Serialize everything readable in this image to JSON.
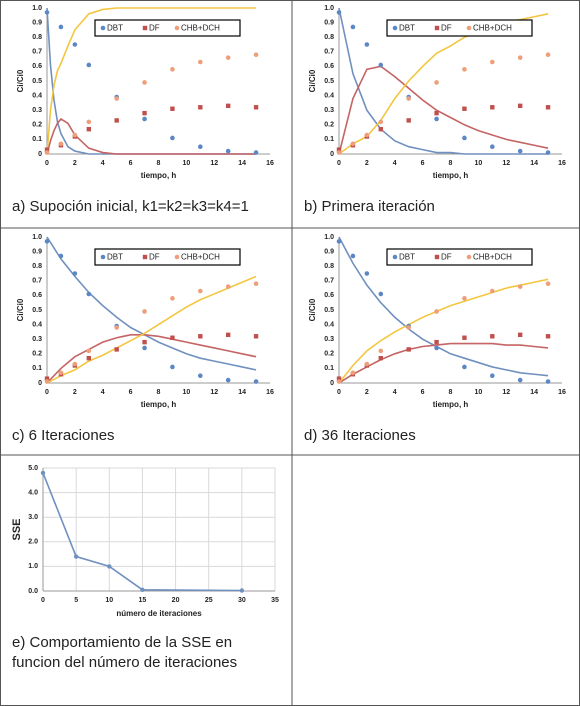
{
  "chart_data": [
    {
      "type": "scatter",
      "caption": "a)  Supoción inicial, k1=k2=k3=k4=1",
      "xlabel": "tiempo, h",
      "ylabel": "Ci/Ci0",
      "xlim": [
        0,
        16
      ],
      "xticks": [
        0,
        2,
        4,
        6,
        8,
        10,
        12,
        14,
        16
      ],
      "ylim": [
        0,
        1
      ],
      "yticks": [
        0,
        0.1,
        0.2,
        0.3,
        0.4,
        0.5,
        0.6,
        0.7,
        0.8,
        0.9,
        {
          "value": 1,
          "label": "1.0"
        }
      ],
      "legend": "top",
      "x": [
        0,
        1,
        2,
        3,
        5,
        7,
        9,
        11,
        13,
        15
      ],
      "series": [
        {
          "name": "DBT",
          "color": "#5b87c5",
          "marker": "circle",
          "values": [
            0.97,
            0.87,
            0.75,
            0.61,
            0.39,
            0.24,
            0.11,
            0.05,
            0.02,
            0.01
          ]
        },
        {
          "name": "DF",
          "color": "#c0504d",
          "marker": "square",
          "values": [
            0.03,
            0.06,
            0.12,
            0.17,
            0.23,
            0.28,
            0.31,
            0.32,
            0.33,
            0.32
          ]
        },
        {
          "name": "CHB+DCH",
          "color": "#ee9e78",
          "marker": "circle",
          "values": [
            0.01,
            0.07,
            0.13,
            0.22,
            0.38,
            0.49,
            0.58,
            0.63,
            0.66,
            0.68
          ]
        }
      ],
      "model_lines": [
        {
          "color": "#7090c0",
          "x": [
            0,
            0.25,
            0.5,
            0.75,
            1,
            1.5,
            2,
            3,
            4,
            5,
            6,
            8,
            10,
            12,
            15
          ],
          "values": [
            1,
            0.61,
            0.37,
            0.22,
            0.14,
            0.05,
            0.02,
            0,
            0,
            0,
            0,
            0,
            0,
            0,
            0
          ]
        },
        {
          "color": "#c46464",
          "x": [
            0,
            0.25,
            0.5,
            0.75,
            1,
            1.5,
            2,
            3,
            4,
            5,
            6,
            8,
            10,
            12,
            15
          ],
          "values": [
            0,
            0.09,
            0.16,
            0.21,
            0.24,
            0.21,
            0.13,
            0.04,
            0.01,
            0,
            0,
            0,
            0,
            0,
            0
          ]
        },
        {
          "color": "#f3c640",
          "x": [
            0,
            0.25,
            0.5,
            0.75,
            1,
            1.5,
            2,
            3,
            4,
            5,
            6,
            8,
            10,
            12,
            15
          ],
          "values": [
            0,
            0.3,
            0.47,
            0.57,
            0.62,
            0.74,
            0.85,
            0.96,
            0.99,
            1,
            1,
            1,
            1,
            1,
            1
          ]
        }
      ]
    },
    {
      "type": "scatter",
      "caption": "b)  Primera iteración",
      "xlabel": "tiempo, h",
      "ylabel": "Ci/Ci0",
      "xlim": [
        0,
        16
      ],
      "xticks": [
        0,
        2,
        4,
        6,
        8,
        10,
        12,
        14,
        16
      ],
      "ylim": [
        0,
        1
      ],
      "yticks": [
        0,
        0.1,
        0.2,
        0.3,
        0.4,
        0.5,
        0.6,
        0.7,
        0.8,
        0.9,
        {
          "value": 1,
          "label": "1.0"
        }
      ],
      "legend": "top",
      "x": [
        0,
        1,
        2,
        3,
        5,
        7,
        9,
        11,
        13,
        15
      ],
      "series": [
        {
          "name": "DBT",
          "color": "#5b87c5",
          "marker": "circle",
          "values": [
            0.97,
            0.87,
            0.75,
            0.61,
            0.39,
            0.24,
            0.11,
            0.05,
            0.02,
            0.01
          ]
        },
        {
          "name": "DF",
          "color": "#c0504d",
          "marker": "square",
          "values": [
            0.03,
            0.06,
            0.12,
            0.17,
            0.23,
            0.28,
            0.31,
            0.32,
            0.33,
            0.32
          ]
        },
        {
          "name": "CHB+DCH",
          "color": "#ee9e78",
          "marker": "circle",
          "values": [
            0.01,
            0.07,
            0.13,
            0.22,
            0.38,
            0.49,
            0.58,
            0.63,
            0.66,
            0.68
          ]
        }
      ],
      "model_lines": [
        {
          "color": "#7090c0",
          "x": [
            0,
            1,
            2,
            3,
            4,
            5,
            6,
            7,
            8,
            9,
            10,
            11,
            12,
            13,
            14,
            15
          ],
          "values": [
            1,
            0.55,
            0.3,
            0.17,
            0.09,
            0.05,
            0.03,
            0.01,
            0.01,
            0,
            0,
            0,
            0,
            0,
            0,
            0
          ]
        },
        {
          "color": "#c46464",
          "x": [
            0,
            1,
            2,
            3,
            4,
            5,
            6,
            7,
            8,
            9,
            10,
            11,
            12,
            13,
            14,
            15
          ],
          "values": [
            0,
            0.38,
            0.58,
            0.6,
            0.53,
            0.45,
            0.37,
            0.3,
            0.25,
            0.2,
            0.16,
            0.13,
            0.1,
            0.08,
            0.06,
            0.04
          ]
        },
        {
          "color": "#f3c640",
          "x": [
            0,
            1,
            2,
            3,
            4,
            5,
            6,
            7,
            8,
            9,
            10,
            11,
            12,
            13,
            14,
            15
          ],
          "values": [
            0,
            0.07,
            0.12,
            0.23,
            0.38,
            0.5,
            0.6,
            0.69,
            0.74,
            0.8,
            0.84,
            0.87,
            0.9,
            0.92,
            0.94,
            0.96
          ]
        }
      ]
    },
    {
      "type": "scatter",
      "caption": "c)  6 Iteraciones",
      "xlabel": "tiempo, h",
      "ylabel": "Ci/Ci0",
      "xlim": [
        0,
        16
      ],
      "xticks": [
        0,
        2,
        4,
        6,
        8,
        10,
        12,
        14,
        16
      ],
      "ylim": [
        0,
        1
      ],
      "yticks": [
        0,
        0.1,
        0.2,
        0.3,
        0.4,
        0.5,
        0.6,
        0.7,
        0.8,
        0.9,
        {
          "value": 1,
          "label": "1.0"
        }
      ],
      "legend": "top",
      "x": [
        0,
        1,
        2,
        3,
        5,
        7,
        9,
        11,
        13,
        15
      ],
      "series": [
        {
          "name": "DBT",
          "color": "#5b87c5",
          "marker": "circle",
          "values": [
            0.97,
            0.87,
            0.75,
            0.61,
            0.39,
            0.24,
            0.11,
            0.05,
            0.02,
            0.01
          ]
        },
        {
          "name": "DF",
          "color": "#c0504d",
          "marker": "square",
          "values": [
            0.03,
            0.06,
            0.12,
            0.17,
            0.23,
            0.28,
            0.31,
            0.32,
            0.33,
            0.32
          ]
        },
        {
          "name": "CHB+DCH",
          "color": "#ee9e78",
          "marker": "circle",
          "values": [
            0.01,
            0.07,
            0.13,
            0.22,
            0.38,
            0.49,
            0.58,
            0.63,
            0.66,
            0.68
          ]
        }
      ],
      "model_lines": [
        {
          "color": "#7090c0",
          "x": [
            0,
            1,
            2,
            3,
            4,
            5,
            6,
            7,
            8,
            9,
            10,
            11,
            12,
            13,
            14,
            15
          ],
          "values": [
            1,
            0.85,
            0.73,
            0.62,
            0.53,
            0.45,
            0.38,
            0.33,
            0.28,
            0.24,
            0.2,
            0.17,
            0.15,
            0.13,
            0.11,
            0.09
          ]
        },
        {
          "color": "#c46464",
          "x": [
            0,
            1,
            2,
            3,
            4,
            5,
            6,
            7,
            8,
            9,
            10,
            11,
            12,
            13,
            14,
            15
          ],
          "values": [
            0,
            0.1,
            0.18,
            0.23,
            0.28,
            0.31,
            0.33,
            0.33,
            0.32,
            0.3,
            0.28,
            0.26,
            0.24,
            0.22,
            0.2,
            0.18
          ]
        },
        {
          "color": "#f3c640",
          "x": [
            0,
            1,
            2,
            3,
            4,
            5,
            6,
            7,
            8,
            9,
            10,
            11,
            12,
            13,
            14,
            15
          ],
          "values": [
            0,
            0.05,
            0.09,
            0.15,
            0.19,
            0.24,
            0.29,
            0.34,
            0.4,
            0.46,
            0.52,
            0.57,
            0.61,
            0.65,
            0.69,
            0.73
          ]
        }
      ]
    },
    {
      "type": "scatter",
      "caption": "d)   36 Iteraciones",
      "xlabel": "tiempo, h",
      "ylabel": "Ci/Ci0",
      "xlim": [
        0,
        16
      ],
      "xticks": [
        0,
        2,
        4,
        6,
        8,
        10,
        12,
        14,
        16
      ],
      "ylim": [
        0,
        1
      ],
      "yticks": [
        0,
        0.1,
        0.2,
        0.3,
        0.4,
        0.5,
        0.6,
        0.7,
        0.8,
        0.9,
        {
          "value": 1,
          "label": "1.0"
        }
      ],
      "legend": "top",
      "x": [
        0,
        1,
        2,
        3,
        5,
        7,
        9,
        11,
        13,
        15
      ],
      "series": [
        {
          "name": "DBT",
          "color": "#5b87c5",
          "marker": "circle",
          "values": [
            0.97,
            0.87,
            0.75,
            0.61,
            0.39,
            0.24,
            0.11,
            0.05,
            0.02,
            0.01
          ]
        },
        {
          "name": "DF",
          "color": "#c0504d",
          "marker": "square",
          "values": [
            0.03,
            0.06,
            0.12,
            0.17,
            0.23,
            0.28,
            0.31,
            0.32,
            0.33,
            0.32
          ]
        },
        {
          "name": "CHB+DCH",
          "color": "#ee9e78",
          "marker": "circle",
          "values": [
            0.01,
            0.07,
            0.13,
            0.22,
            0.38,
            0.49,
            0.58,
            0.63,
            0.66,
            0.68
          ]
        }
      ],
      "model_lines": [
        {
          "color": "#7090c0",
          "x": [
            0,
            1,
            2,
            3,
            4,
            5,
            6,
            7,
            8,
            9,
            10,
            11,
            12,
            13,
            14,
            15
          ],
          "values": [
            1,
            0.82,
            0.67,
            0.55,
            0.45,
            0.37,
            0.3,
            0.25,
            0.2,
            0.17,
            0.14,
            0.11,
            0.09,
            0.07,
            0.06,
            0.05
          ]
        },
        {
          "color": "#c46464",
          "x": [
            0,
            1,
            2,
            3,
            4,
            5,
            6,
            7,
            8,
            9,
            10,
            11,
            12,
            13,
            14,
            15
          ],
          "values": [
            0,
            0.06,
            0.11,
            0.16,
            0.2,
            0.23,
            0.25,
            0.26,
            0.27,
            0.27,
            0.27,
            0.27,
            0.26,
            0.26,
            0.25,
            0.24
          ]
        },
        {
          "color": "#f3c640",
          "x": [
            0,
            1,
            2,
            3,
            4,
            5,
            6,
            7,
            8,
            9,
            10,
            11,
            12,
            13,
            14,
            15
          ],
          "values": [
            0,
            0.12,
            0.22,
            0.29,
            0.35,
            0.4,
            0.45,
            0.49,
            0.53,
            0.56,
            0.59,
            0.62,
            0.65,
            0.67,
            0.69,
            0.71
          ]
        }
      ]
    },
    {
      "type": "line",
      "caption": [
        "e)  Comportamiento de la SSE en",
        "funcion del número de iteraciones"
      ],
      "xlabel": "número de iteraciones",
      "ylabel": "SSE",
      "xlim": [
        0,
        35
      ],
      "xticks": [
        0,
        5,
        10,
        15,
        20,
        25,
        30,
        35
      ],
      "ylim": [
        0,
        5
      ],
      "yticks": [
        {
          "value": 0,
          "label": "0.0"
        },
        {
          "value": 1,
          "label": "1.0"
        },
        {
          "value": 2,
          "label": "2.0"
        },
        {
          "value": 3,
          "label": "3.0"
        },
        {
          "value": 4,
          "label": "4.0"
        },
        {
          "value": 5,
          "label": "5.0"
        }
      ],
      "grid": true,
      "color": "#7090c0",
      "x": [
        0,
        5,
        10,
        15,
        30
      ],
      "values": [
        4.8,
        1.4,
        1.0,
        0.05,
        0.02
      ]
    }
  ]
}
